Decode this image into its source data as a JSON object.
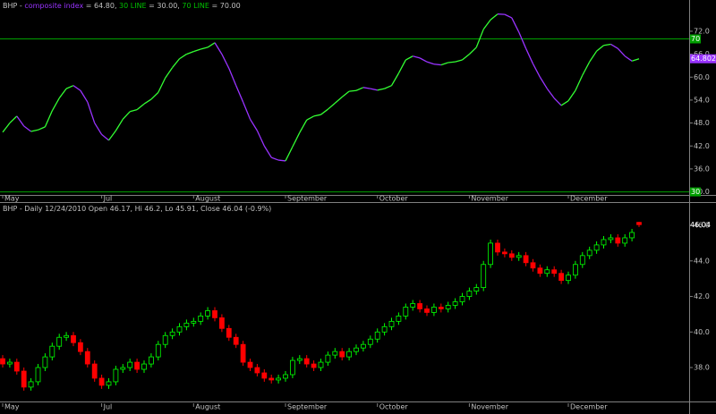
{
  "chart_data": [
    {
      "type": "line",
      "title": [
        {
          "text": "BHP - ",
          "color": "#c0c0c0"
        },
        {
          "text": "composite index",
          "color": "#9933ff"
        },
        {
          "text": " = 64.80, ",
          "color": "#c0c0c0"
        },
        {
          "text": "30 LINE",
          "color": "#00c000"
        },
        {
          "text": " = 30.00, ",
          "color": "#c0c0c0"
        },
        {
          "text": "70 LINE",
          "color": "#00c000"
        },
        {
          "text": " = 70.00",
          "color": "#c0c0c0"
        }
      ],
      "categories": [
        "May",
        null,
        null,
        null,
        null,
        null,
        null,
        null,
        null,
        null,
        null,
        null,
        null,
        null,
        "Jul",
        null,
        null,
        null,
        null,
        null,
        null,
        null,
        null,
        null,
        null,
        null,
        null,
        "August",
        null,
        null,
        null,
        null,
        null,
        null,
        null,
        null,
        null,
        null,
        null,
        null,
        "September",
        null,
        null,
        null,
        null,
        null,
        null,
        null,
        null,
        null,
        null,
        null,
        null,
        "October",
        null,
        null,
        null,
        null,
        null,
        null,
        null,
        null,
        null,
        null,
        null,
        null,
        "November",
        null,
        null,
        null,
        null,
        null,
        null,
        null,
        null,
        null,
        null,
        null,
        null,
        null,
        "December",
        null,
        null,
        null,
        null,
        null,
        null,
        null,
        null,
        null,
        null
      ],
      "values": [
        45.6,
        48,
        49.8,
        47.2,
        45.8,
        46.2,
        47,
        51.2,
        54.5,
        57,
        57.8,
        56.5,
        53.5,
        48,
        45,
        43.5,
        46,
        49,
        51,
        51.5,
        53,
        54.2,
        56,
        59.8,
        62.5,
        64.8,
        66,
        66.7,
        67.3,
        67.8,
        69,
        66,
        62.3,
        57.8,
        53.5,
        49,
        46,
        42,
        39,
        38.3,
        38.1,
        41.8,
        45.5,
        48.8,
        49.8,
        50.2,
        51.6,
        53.2,
        54.8,
        56.3,
        56.5,
        57.3,
        57,
        56.6,
        57,
        57.8,
        61,
        64.5,
        65.5,
        65,
        64,
        63.4,
        63.2,
        63.8,
        64,
        64.5,
        66,
        67.8,
        72.5,
        75,
        76.5,
        76.4,
        75.5,
        71.8,
        67.5,
        63.5,
        60,
        57,
        54.5,
        52.6,
        53.8,
        56.5,
        60.5,
        64,
        66.8,
        68.3,
        68.6,
        67.5,
        65.5,
        64.2,
        64.8022
      ],
      "up_color": "#33ff33",
      "down_color": "#9933ff",
      "last_value_label": "64.8022",
      "levels": [
        {
          "value": 70,
          "label": "70",
          "color": "#00a000"
        },
        {
          "value": 30,
          "label": "30",
          "color": "#00a000"
        }
      ],
      "ylim": [
        29.2,
        79
      ],
      "yticks": [
        {
          "value": 30,
          "label": "30.0"
        },
        {
          "value": 36,
          "label": "36.0"
        },
        {
          "value": 42,
          "label": "42.0"
        },
        {
          "value": 48,
          "label": "48.0"
        },
        {
          "value": 54,
          "label": "54.0"
        },
        {
          "value": 60,
          "label": "60.0"
        },
        {
          "value": 66,
          "label": "66.0"
        },
        {
          "value": 72,
          "label": "72.0"
        }
      ]
    },
    {
      "type": "candlestick",
      "title": [
        {
          "text": "BHP - Daily 12/24/2010 Open 46.17, Hi 46.2, Lo 45.91, Close 46.04 (-0.9%)",
          "color": "#c0c0c0"
        }
      ],
      "categories": [
        "May",
        null,
        null,
        null,
        null,
        null,
        null,
        null,
        null,
        null,
        null,
        null,
        null,
        null,
        "Jul",
        null,
        null,
        null,
        null,
        null,
        null,
        null,
        null,
        null,
        null,
        null,
        null,
        "August",
        null,
        null,
        null,
        null,
        null,
        null,
        null,
        null,
        null,
        null,
        null,
        null,
        "September",
        null,
        null,
        null,
        null,
        null,
        null,
        null,
        null,
        null,
        null,
        null,
        null,
        "October",
        null,
        null,
        null,
        null,
        null,
        null,
        null,
        null,
        null,
        null,
        null,
        null,
        "November",
        null,
        null,
        null,
        null,
        null,
        null,
        null,
        null,
        null,
        null,
        null,
        null,
        null,
        "December",
        null,
        null,
        null,
        null,
        null,
        null,
        null,
        null,
        null,
        null
      ],
      "open": [
        38.5,
        38.2,
        38.3,
        37.8,
        36.9,
        37.2,
        38.0,
        38.6,
        39.2,
        39.7,
        39.8,
        39.4,
        38.9,
        38.2,
        37.4,
        37.0,
        37.2,
        37.9,
        38.0,
        38.3,
        37.9,
        38.2,
        38.6,
        39.3,
        39.8,
        40.0,
        40.3,
        40.5,
        40.6,
        40.9,
        41.2,
        40.8,
        40.2,
        39.7,
        39.3,
        38.3,
        38.0,
        37.7,
        37.4,
        37.3,
        37.4,
        37.6,
        38.4,
        38.5,
        38.2,
        38.0,
        38.3,
        38.7,
        38.9,
        38.6,
        38.9,
        39.1,
        39.3,
        39.6,
        40.0,
        40.3,
        40.6,
        40.9,
        41.4,
        41.6,
        41.3,
        41.1,
        41.4,
        41.3,
        41.5,
        41.7,
        42.0,
        42.3,
        42.5,
        43.8,
        45.0,
        44.5,
        44.4,
        44.2,
        44.3,
        43.9,
        43.6,
        43.3,
        43.5,
        43.3,
        42.9,
        43.2,
        43.8,
        44.3,
        44.6,
        44.9,
        45.2,
        45.3,
        45.0,
        45.3,
        46.17
      ],
      "high": [
        38.7,
        38.5,
        38.5,
        38.0,
        37.4,
        38.2,
        38.8,
        39.4,
        39.9,
        40.0,
        40.0,
        39.6,
        39.1,
        38.4,
        37.6,
        37.4,
        38.1,
        38.2,
        38.5,
        38.5,
        38.4,
        38.8,
        39.5,
        40.0,
        40.2,
        40.5,
        40.7,
        40.8,
        41.1,
        41.4,
        41.4,
        41.0,
        40.4,
        39.9,
        39.5,
        38.5,
        38.2,
        37.9,
        37.6,
        37.6,
        37.8,
        38.6,
        38.7,
        38.7,
        38.4,
        38.5,
        38.9,
        39.1,
        39.1,
        39.1,
        39.3,
        39.5,
        39.8,
        40.2,
        40.5,
        40.8,
        41.1,
        41.6,
        41.8,
        41.8,
        41.5,
        41.6,
        41.6,
        41.7,
        41.9,
        42.2,
        42.5,
        42.7,
        44.0,
        45.2,
        45.2,
        44.7,
        44.6,
        44.5,
        44.5,
        44.1,
        43.8,
        43.7,
        43.7,
        43.5,
        43.4,
        44.0,
        44.5,
        44.8,
        45.1,
        45.4,
        45.5,
        45.5,
        45.5,
        45.8,
        46.2
      ],
      "low": [
        38.0,
        38.0,
        37.6,
        36.7,
        36.7,
        37.0,
        37.8,
        38.4,
        39.0,
        39.5,
        39.2,
        38.7,
        38.0,
        37.2,
        36.8,
        36.8,
        37.0,
        37.7,
        37.8,
        37.7,
        37.7,
        38.0,
        38.4,
        39.1,
        39.6,
        39.8,
        40.1,
        40.3,
        40.4,
        40.7,
        40.6,
        40.0,
        39.5,
        39.1,
        38.1,
        37.8,
        37.5,
        37.2,
        37.1,
        37.1,
        37.2,
        37.4,
        38.2,
        38.0,
        37.8,
        37.8,
        38.1,
        38.5,
        38.4,
        38.4,
        38.7,
        38.9,
        39.1,
        39.4,
        39.8,
        40.1,
        40.4,
        40.7,
        41.2,
        41.1,
        40.9,
        40.9,
        41.1,
        41.1,
        41.3,
        41.5,
        41.8,
        42.1,
        42.3,
        43.6,
        44.3,
        44.2,
        44.0,
        44.0,
        43.7,
        43.4,
        43.1,
        43.1,
        43.1,
        42.7,
        42.7,
        43.0,
        43.6,
        44.1,
        44.4,
        44.7,
        45.0,
        44.8,
        44.8,
        45.1,
        45.91
      ],
      "close": [
        38.2,
        38.3,
        37.8,
        36.9,
        37.2,
        38.0,
        38.6,
        39.2,
        39.7,
        39.8,
        39.4,
        38.9,
        38.2,
        37.4,
        37.0,
        37.2,
        37.9,
        38.0,
        38.3,
        37.9,
        38.2,
        38.6,
        39.3,
        39.8,
        40.0,
        40.3,
        40.5,
        40.6,
        40.9,
        41.2,
        40.8,
        40.2,
        39.7,
        39.3,
        38.3,
        38.0,
        37.7,
        37.4,
        37.3,
        37.4,
        37.6,
        38.4,
        38.5,
        38.2,
        38.0,
        38.3,
        38.7,
        38.9,
        38.6,
        38.9,
        39.1,
        39.3,
        39.6,
        40.0,
        40.3,
        40.6,
        40.9,
        41.4,
        41.6,
        41.3,
        41.1,
        41.4,
        41.3,
        41.5,
        41.7,
        42.0,
        42.3,
        42.5,
        43.8,
        45.0,
        44.5,
        44.4,
        44.2,
        44.3,
        43.9,
        43.6,
        43.3,
        43.5,
        43.3,
        42.9,
        43.2,
        43.8,
        44.3,
        44.6,
        44.9,
        45.2,
        45.3,
        45.0,
        45.3,
        45.6,
        46.04
      ],
      "up_color": "#00ff00",
      "down_color": "#ff0000",
      "last_value_label": "46.04",
      "ylim": [
        36.14,
        47.21
      ],
      "yticks": [
        {
          "value": 38,
          "label": "38.0"
        },
        {
          "value": 40,
          "label": "40.0"
        },
        {
          "value": 42,
          "label": "42.0"
        },
        {
          "value": 44,
          "label": "44.0"
        },
        {
          "value": 46,
          "label": "46.0"
        }
      ]
    }
  ]
}
